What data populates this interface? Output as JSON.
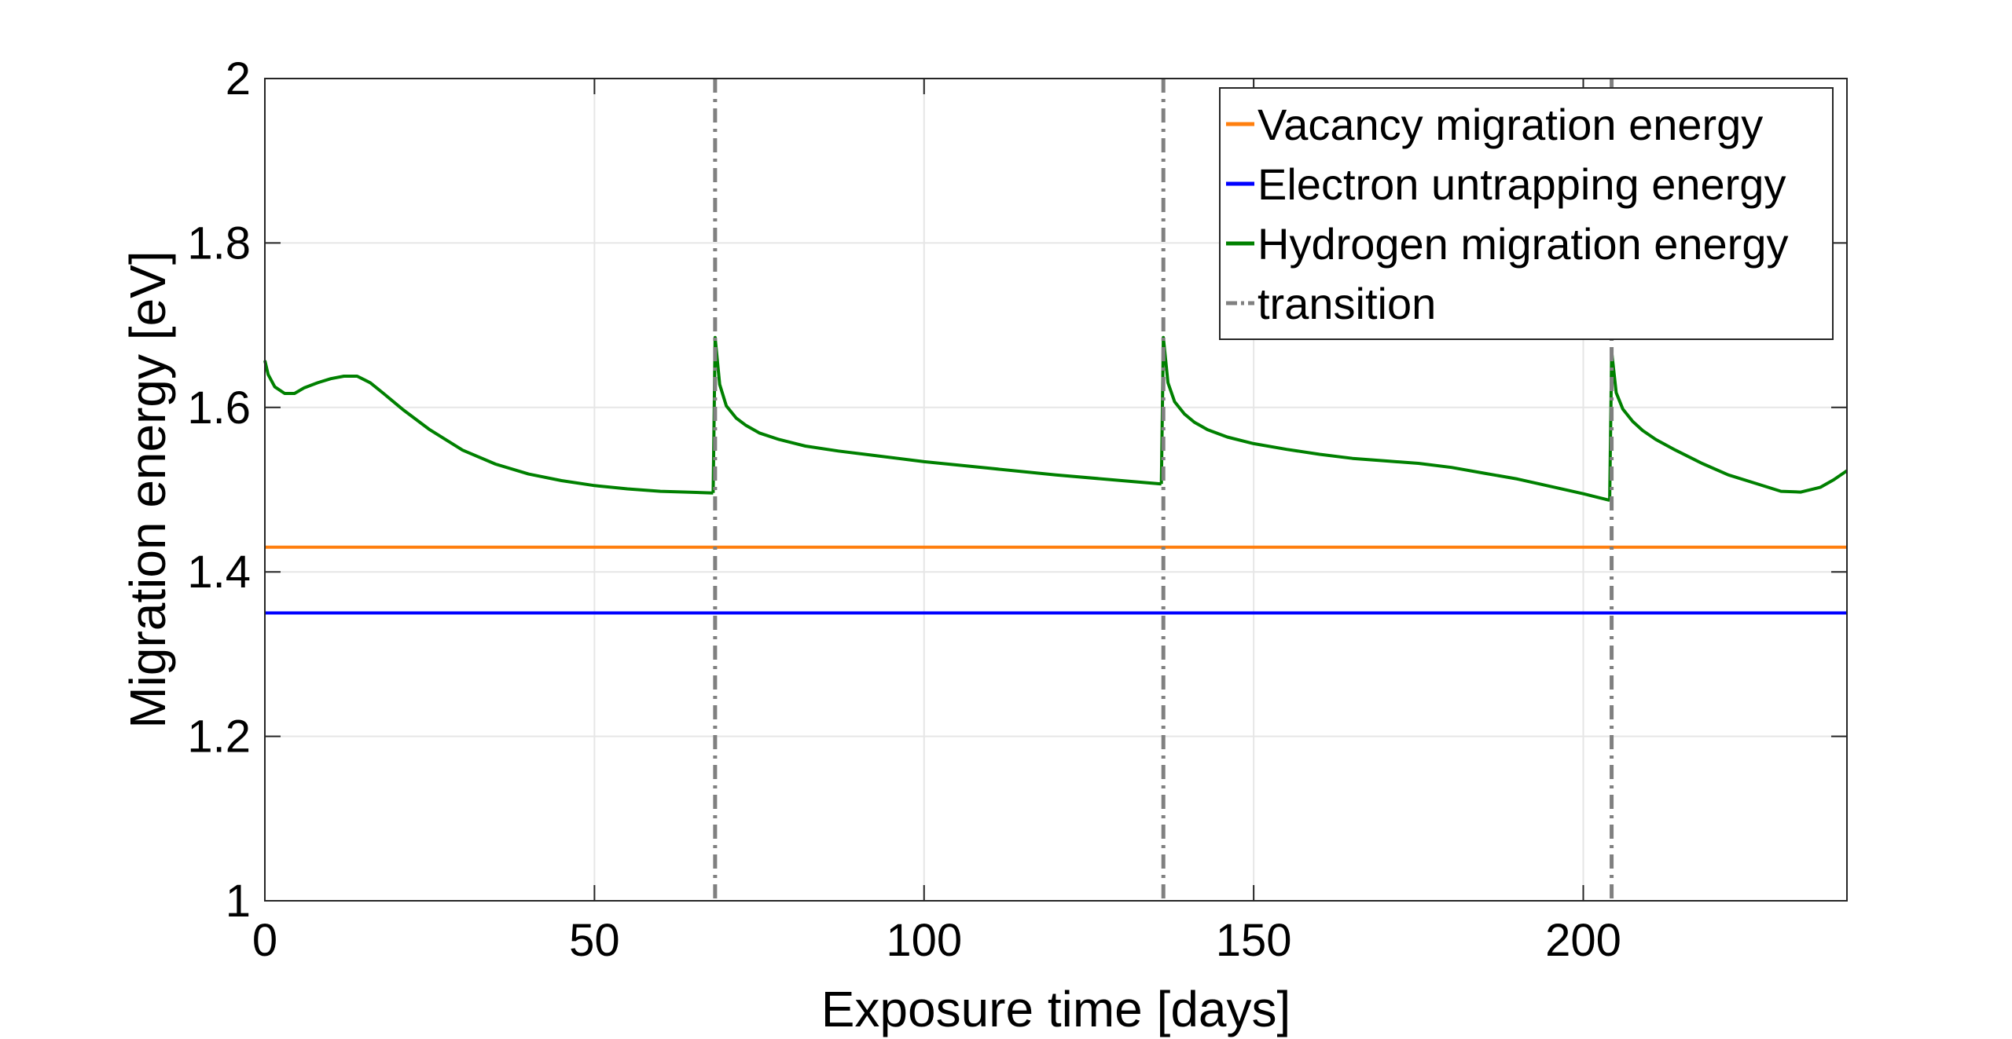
{
  "chart_data": {
    "type": "line",
    "title": "",
    "xlabel": "Exposure time [days]",
    "ylabel": "Migration energy [eV]",
    "xlim": [
      0,
      240
    ],
    "ylim": [
      1,
      2
    ],
    "xticks": [
      0,
      50,
      100,
      150,
      200
    ],
    "yticks": [
      1,
      1.2,
      1.4,
      1.6,
      1.8,
      2
    ],
    "ytick_labels": [
      "1",
      "1.2",
      "1.4",
      "1.6",
      "1.8",
      "2"
    ],
    "grid": true,
    "legend_position": "top-right",
    "series": [
      {
        "name": "Vacancy migration energy",
        "color": "#ff7f0e",
        "style": "solid",
        "x": [
          0,
          240
        ],
        "y": [
          1.43,
          1.43
        ]
      },
      {
        "name": "Electron untrapping energy",
        "color": "#0000ff",
        "style": "solid",
        "x": [
          0,
          240
        ],
        "y": [
          1.35,
          1.35
        ]
      },
      {
        "name": "Hydrogen migration energy",
        "color": "#008000",
        "style": "solid",
        "segments": [
          {
            "x": [
              0,
              0.5,
              1.5,
              3,
              4.5,
              6,
              8,
              10,
              12,
              14,
              15,
              16,
              18,
              21,
              25,
              30,
              35,
              40,
              45,
              50,
              55,
              60,
              64,
              68
            ],
            "y": [
              1.657,
              1.64,
              1.625,
              1.617,
              1.617,
              1.624,
              1.63,
              1.635,
              1.638,
              1.638,
              1.634,
              1.63,
              1.617,
              1.597,
              1.573,
              1.548,
              1.531,
              1.519,
              1.511,
              1.505,
              1.501,
              1.498,
              1.497,
              1.496
            ]
          },
          {
            "x": [
              68,
              68.3,
              69,
              70,
              71.5,
              73,
              75,
              78,
              82,
              87,
              92,
              100,
              110,
              120,
              130,
              136
            ],
            "y": [
              1.496,
              1.685,
              1.628,
              1.602,
              1.587,
              1.578,
              1.569,
              1.561,
              1.553,
              1.547,
              1.542,
              1.534,
              1.526,
              1.518,
              1.511,
              1.507
            ]
          },
          {
            "x": [
              136,
              136.3,
              137,
              138,
              139.5,
              141,
              143,
              146,
              150,
              155,
              160,
              165,
              170,
              175,
              180,
              185,
              190,
              195,
              200,
              204
            ],
            "y": [
              1.507,
              1.685,
              1.63,
              1.607,
              1.592,
              1.582,
              1.573,
              1.564,
              1.556,
              1.549,
              1.543,
              1.538,
              1.535,
              1.532,
              1.527,
              1.52,
              1.513,
              1.504,
              1.495,
              1.487
            ]
          },
          {
            "x": [
              204,
              204.3,
              205,
              206,
              207.5,
              209,
              211,
              214,
              218,
              222,
              226,
              230,
              233,
              236,
              238,
              240
            ],
            "y": [
              1.487,
              1.668,
              1.618,
              1.598,
              1.583,
              1.572,
              1.561,
              1.548,
              1.532,
              1.518,
              1.508,
              1.498,
              1.497,
              1.503,
              1.512,
              1.523
            ]
          }
        ]
      },
      {
        "name": "transition",
        "color": "#808080",
        "style": "dash-dot",
        "vlines": [
          68.3,
          136.3,
          204.3
        ]
      }
    ]
  }
}
